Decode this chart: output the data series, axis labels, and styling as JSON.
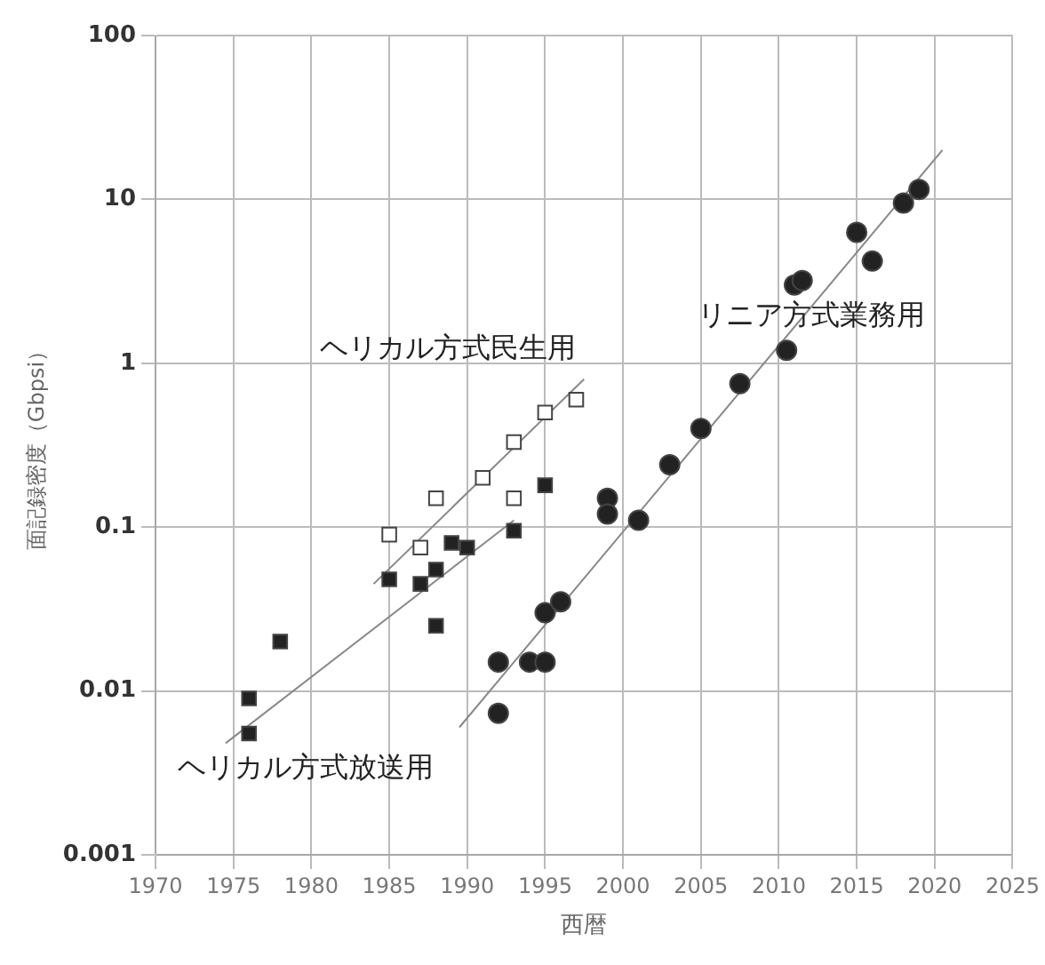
{
  "chart_data": {
    "type": "scatter",
    "xlabel": "西暦",
    "ylabel": "面記録密度（Gbpsi）",
    "log": "y",
    "grid": true,
    "legend": false,
    "xlim": [
      1970,
      2025
    ],
    "xticks": [
      1970,
      1975,
      1980,
      1985,
      1990,
      1995,
      2000,
      2005,
      2010,
      2015,
      2020,
      2025
    ],
    "ylim": [
      0.001,
      100
    ],
    "yticks": [
      0.001,
      0.01,
      0.1,
      1,
      10,
      100
    ],
    "series": [
      {
        "name": "ヘリカル方式民生用",
        "marker": "square",
        "color": "#ffffff",
        "x": [
          1985,
          1987,
          1988,
          1991,
          1993,
          1993,
          1995,
          1997
        ],
        "values": [
          0.09,
          0.075,
          0.15,
          0.2,
          0.33,
          0.15,
          0.5,
          0.6
        ]
      },
      {
        "name": "ヘリカル方式放送用",
        "marker": "square",
        "color": "#222222",
        "x": [
          1976,
          1976,
          1978,
          1985,
          1987,
          1988,
          1988,
          1989,
          1990,
          1993,
          1995
        ],
        "values": [
          0.009,
          0.0055,
          0.02,
          0.048,
          0.045,
          0.055,
          0.025,
          0.08,
          0.075,
          0.095,
          0.18
        ]
      },
      {
        "name": "リニア方式業務用",
        "marker": "circle",
        "color": "#222222",
        "x": [
          1992,
          1992,
          1994,
          1995,
          1995,
          1996,
          1999,
          1999,
          2001,
          2003,
          2005,
          2007.5,
          2010.5,
          2011,
          2011.5,
          2015,
          2016,
          2018,
          2019
        ],
        "values": [
          0.015,
          0.0073,
          0.015,
          0.015,
          0.03,
          0.035,
          0.15,
          0.12,
          0.11,
          0.24,
          0.4,
          0.75,
          1.2,
          3,
          3.2,
          6.3,
          4.2,
          9.5,
          11.5
        ]
      },
      {
        "type": "line",
        "color": "#888888",
        "x": [
          1984,
          1997.5
        ],
        "values": [
          0.045,
          0.8
        ]
      },
      {
        "type": "line",
        "color": "#888888",
        "x": [
          1974.5,
          1993
        ],
        "values": [
          0.0048,
          0.11
        ]
      },
      {
        "type": "line",
        "color": "#888888",
        "x": [
          1989.5,
          2020.5
        ],
        "values": [
          0.006,
          20
        ]
      }
    ]
  }
}
